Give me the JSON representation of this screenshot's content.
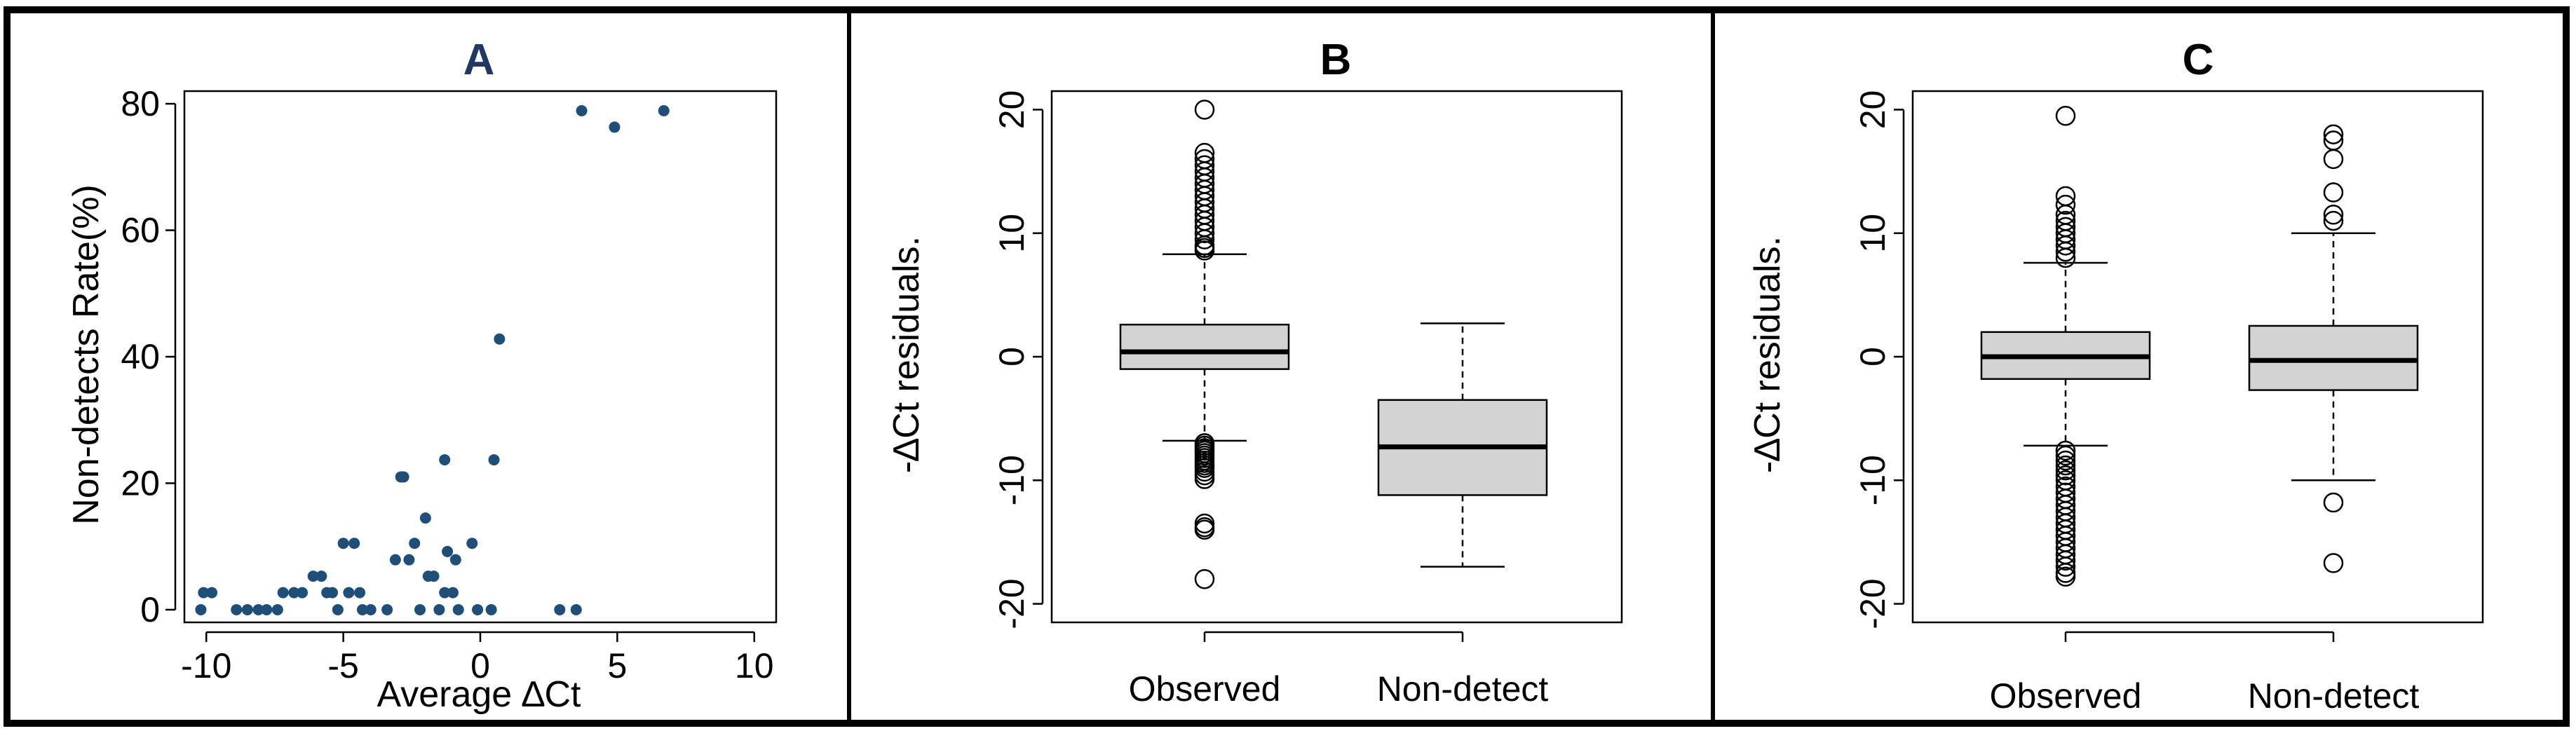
{
  "colors": {
    "point": "#1f4e79",
    "box_fill": "#d3d3d3",
    "title_a": "#1f3864",
    "frame": "#000000"
  },
  "chart_data": [
    {
      "type": "scatter",
      "title": "A",
      "xlabel": "Average ∆Ct",
      "ylabel": "Non-detects Rate(%)",
      "xlim": [
        -10.8,
        10.8
      ],
      "ylim": [
        -2,
        82
      ],
      "x_ticks": [
        -10,
        -5,
        0,
        5,
        10
      ],
      "x_tick_labels": [
        "-10",
        "-5",
        "0",
        "5",
        "10"
      ],
      "y_ticks": [
        0,
        20,
        40,
        60,
        80
      ],
      "y_tick_labels": [
        "0",
        "20",
        "40",
        "60",
        "80"
      ],
      "points": [
        {
          "x": -10.2,
          "y": 0
        },
        {
          "x": -10.1,
          "y": 2.7
        },
        {
          "x": -9.8,
          "y": 2.7
        },
        {
          "x": -8.9,
          "y": 0
        },
        {
          "x": -8.5,
          "y": 0
        },
        {
          "x": -8.1,
          "y": 0
        },
        {
          "x": -7.8,
          "y": 0
        },
        {
          "x": -7.4,
          "y": 0
        },
        {
          "x": -7.2,
          "y": 2.7
        },
        {
          "x": -6.8,
          "y": 2.7
        },
        {
          "x": -6.5,
          "y": 2.7
        },
        {
          "x": -6.1,
          "y": 5.3
        },
        {
          "x": -5.8,
          "y": 5.3
        },
        {
          "x": -5.6,
          "y": 2.7
        },
        {
          "x": -5.4,
          "y": 2.7
        },
        {
          "x": -5.2,
          "y": 0
        },
        {
          "x": -5.0,
          "y": 10.5
        },
        {
          "x": -4.8,
          "y": 2.7
        },
        {
          "x": -4.6,
          "y": 10.5
        },
        {
          "x": -4.4,
          "y": 2.7
        },
        {
          "x": -4.3,
          "y": 0
        },
        {
          "x": -4.0,
          "y": 0
        },
        {
          "x": -3.4,
          "y": 0
        },
        {
          "x": -3.1,
          "y": 7.9
        },
        {
          "x": -2.9,
          "y": 21
        },
        {
          "x": -2.8,
          "y": 21
        },
        {
          "x": -2.6,
          "y": 7.9
        },
        {
          "x": -2.4,
          "y": 10.5
        },
        {
          "x": -2.2,
          "y": 0
        },
        {
          "x": -2.0,
          "y": 14.5
        },
        {
          "x": -1.9,
          "y": 5.3
        },
        {
          "x": -1.7,
          "y": 5.3
        },
        {
          "x": -1.5,
          "y": 0
        },
        {
          "x": -1.3,
          "y": 23.7
        },
        {
          "x": -1.3,
          "y": 2.7
        },
        {
          "x": -1.2,
          "y": 9.2
        },
        {
          "x": -1.0,
          "y": 2.7
        },
        {
          "x": -0.9,
          "y": 7.9
        },
        {
          "x": -0.8,
          "y": 0
        },
        {
          "x": -0.3,
          "y": 10.5
        },
        {
          "x": -0.1,
          "y": 0
        },
        {
          "x": 0.4,
          "y": 0
        },
        {
          "x": 0.5,
          "y": 23.7
        },
        {
          "x": 0.7,
          "y": 42.8
        },
        {
          "x": 2.9,
          "y": 0
        },
        {
          "x": 3.5,
          "y": 0
        },
        {
          "x": 3.7,
          "y": 78.9
        },
        {
          "x": 4.9,
          "y": 76.3
        },
        {
          "x": 6.7,
          "y": 78.9
        }
      ]
    },
    {
      "type": "boxplot",
      "title": "B",
      "xlabel": "",
      "ylabel": "-∆Ct residuals.",
      "ylim": [
        -21.5,
        21.5
      ],
      "y_ticks": [
        -20,
        -10,
        0,
        10,
        20
      ],
      "y_tick_labels": [
        "-20",
        "-10",
        "0",
        "10",
        "20"
      ],
      "categories": [
        "Observed",
        "Non-detect"
      ],
      "boxes": [
        {
          "name": "Observed",
          "whisker_low": -6.8,
          "q1": -1.0,
          "median": 0.4,
          "q3": 2.6,
          "whisker_high": 8.3,
          "outliers": [
            20,
            16.5,
            16,
            15.5,
            15,
            14.5,
            14,
            13.5,
            13,
            12.5,
            12,
            11.5,
            11,
            10.5,
            10,
            9.5,
            9,
            8.8,
            8.6,
            -7.0,
            -7.2,
            -7.4,
            -7.6,
            -7.8,
            -8.0,
            -8.2,
            -8.4,
            -8.6,
            -8.8,
            -9.0,
            -9.3,
            -9.6,
            -9.9,
            -13.5,
            -13.8,
            -14.0,
            -18
          ]
        },
        {
          "name": "Non-detect",
          "whisker_low": -17,
          "q1": -11.2,
          "median": -7.3,
          "q3": -3.5,
          "whisker_high": 2.7,
          "outliers": []
        }
      ]
    },
    {
      "type": "boxplot",
      "title": "C",
      "xlabel": "",
      "ylabel": "-∆Ct residuals.",
      "ylim": [
        -21.5,
        21.5
      ],
      "y_ticks": [
        -20,
        -10,
        0,
        10,
        20
      ],
      "y_tick_labels": [
        "-20",
        "-10",
        "0",
        "10",
        "20"
      ],
      "categories": [
        "Observed",
        "Non-detect"
      ],
      "boxes": [
        {
          "name": "Observed",
          "whisker_low": -7.2,
          "q1": -1.8,
          "median": 0,
          "q3": 2.0,
          "whisker_high": 7.6,
          "outliers": [
            19.5,
            13,
            12.3,
            11.5,
            11,
            10.5,
            10,
            9.5,
            9,
            8.5,
            8,
            -7.6,
            -8.0,
            -8.4,
            -8.8,
            -9.2,
            -9.6,
            -10.0,
            -10.5,
            -11,
            -11.5,
            -12,
            -12.5,
            -13,
            -13.5,
            -14,
            -14.5,
            -15,
            -15.5,
            -16,
            -16.5,
            -17,
            -17.5,
            -17.8
          ]
        },
        {
          "name": "Non-detect",
          "whisker_low": -10,
          "q1": -2.7,
          "median": -0.3,
          "q3": 2.5,
          "whisker_high": 10,
          "outliers": [
            18,
            17.5,
            16,
            13.3,
            11.5,
            11,
            -11.8,
            -16.7
          ]
        }
      ]
    }
  ]
}
